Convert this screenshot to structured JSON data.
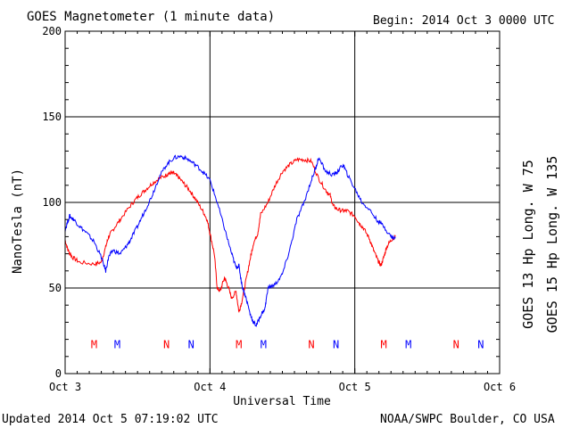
{
  "header": {
    "title": "GOES Magnetometer (1 minute data)",
    "begin": "Begin:  2014 Oct 3 0000 UTC"
  },
  "footer": {
    "updated": "Updated 2014 Oct  5 07:19:02 UTC",
    "source": "NOAA/SWPC Boulder, CO USA"
  },
  "colors": {
    "goes13": "#ff0000",
    "goes15": "#0000ff",
    "axis": "#000000"
  },
  "chart_data": {
    "type": "line",
    "xlabel": "Universal Time",
    "ylabel": "NanoTesla (nT)",
    "ylim": [
      0,
      200
    ],
    "yticks": [
      0,
      50,
      100,
      150,
      200
    ],
    "xlim": [
      0,
      3
    ],
    "xticks": [
      {
        "day": 0,
        "label": "Oct 3"
      },
      {
        "day": 1,
        "label": "Oct 4"
      },
      {
        "day": 2,
        "label": "Oct 5"
      },
      {
        "day": 3,
        "label": "Oct 6"
      }
    ],
    "grid": true,
    "legend_position": "right (vertical)",
    "series": [
      {
        "name": "GOES 13 Hp  Long. W 75",
        "color": "#ff0000",
        "x": [
          0,
          0.02,
          0.05,
          0.1,
          0.2,
          0.25,
          0.28,
          0.3,
          0.33,
          0.38,
          0.45,
          0.5,
          0.55,
          0.6,
          0.65,
          0.7,
          0.72,
          0.75,
          0.78,
          0.82,
          0.86,
          0.9,
          0.95,
          0.98,
          1.0,
          1.03,
          1.05,
          1.07,
          1.1,
          1.12,
          1.15,
          1.18,
          1.2,
          1.22,
          1.25,
          1.28,
          1.3,
          1.33,
          1.35,
          1.4,
          1.45,
          1.5,
          1.55,
          1.6,
          1.65,
          1.7,
          1.75,
          1.8,
          1.83,
          1.85,
          1.88,
          1.92,
          1.95,
          2.0,
          2.03,
          2.06,
          2.1,
          2.13,
          2.16,
          2.18,
          2.2,
          2.22,
          2.25,
          2.28
        ],
        "y": [
          78,
          72,
          68,
          65,
          64,
          65,
          74,
          80,
          84,
          90,
          98,
          103,
          107,
          111,
          114,
          116,
          117,
          117,
          115,
          111,
          107,
          102,
          95,
          90,
          82,
          70,
          50,
          48,
          56,
          52,
          44,
          48,
          36,
          42,
          55,
          68,
          76,
          82,
          93,
          100,
          110,
          118,
          122,
          125,
          125,
          124,
          114,
          107,
          104,
          98,
          96,
          95,
          95,
          92,
          88,
          85,
          79,
          72,
          66,
          63,
          68,
          74,
          78,
          80
        ]
      },
      {
        "name": "GOES 15 Hp  Long. W 135",
        "color": "#0000ff",
        "x": [
          0,
          0.03,
          0.06,
          0.1,
          0.15,
          0.2,
          0.25,
          0.28,
          0.3,
          0.33,
          0.38,
          0.42,
          0.45,
          0.5,
          0.55,
          0.6,
          0.65,
          0.7,
          0.75,
          0.8,
          0.85,
          0.9,
          0.95,
          1.0,
          1.05,
          1.1,
          1.15,
          1.18,
          1.2,
          1.22,
          1.25,
          1.28,
          1.3,
          1.32,
          1.35,
          1.38,
          1.4,
          1.45,
          1.5,
          1.55,
          1.6,
          1.65,
          1.7,
          1.73,
          1.75,
          1.8,
          1.85,
          1.88,
          1.92,
          1.95,
          2.0,
          2.05,
          2.1,
          2.15,
          2.2,
          2.25,
          2.28
        ],
        "y": [
          84,
          92,
          90,
          86,
          82,
          77,
          68,
          60,
          68,
          72,
          70,
          74,
          78,
          86,
          95,
          104,
          115,
          122,
          126,
          127,
          125,
          122,
          118,
          113,
          100,
          85,
          70,
          62,
          63,
          52,
          44,
          34,
          30,
          28,
          34,
          38,
          50,
          52,
          58,
          72,
          90,
          100,
          113,
          120,
          126,
          118,
          116,
          118,
          122,
          116,
          108,
          100,
          96,
          90,
          86,
          80,
          79
        ]
      }
    ],
    "markers": [
      {
        "label": "M",
        "day": 0.2,
        "color": "#ff0000"
      },
      {
        "label": "M",
        "day": 0.36,
        "color": "#0000ff"
      },
      {
        "label": "N",
        "day": 0.7,
        "color": "#ff0000"
      },
      {
        "label": "N",
        "day": 0.87,
        "color": "#0000ff"
      },
      {
        "label": "M",
        "day": 1.2,
        "color": "#ff0000"
      },
      {
        "label": "M",
        "day": 1.37,
        "color": "#0000ff"
      },
      {
        "label": "N",
        "day": 1.7,
        "color": "#ff0000"
      },
      {
        "label": "N",
        "day": 1.87,
        "color": "#0000ff"
      },
      {
        "label": "M",
        "day": 2.2,
        "color": "#ff0000"
      },
      {
        "label": "M",
        "day": 2.37,
        "color": "#0000ff"
      },
      {
        "label": "N",
        "day": 2.7,
        "color": "#ff0000"
      },
      {
        "label": "N",
        "day": 2.87,
        "color": "#0000ff"
      }
    ],
    "marker_value": 17
  }
}
